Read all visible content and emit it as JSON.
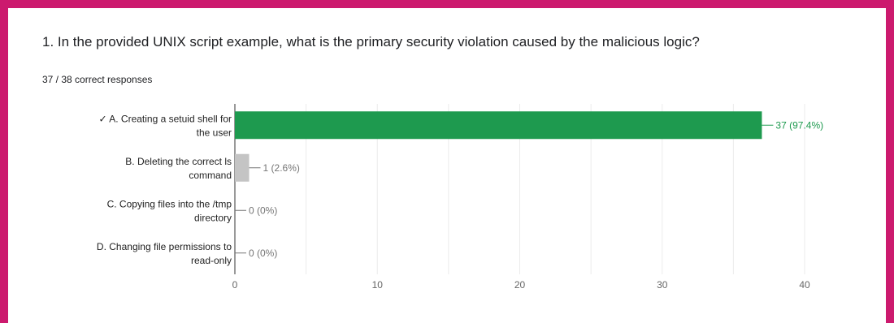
{
  "question": {
    "title": "1. In the provided UNIX script example, what is the primary security violation caused by the malicious logic?",
    "summary": "37 / 38 correct responses"
  },
  "colors": {
    "frame": "#cc1a6e",
    "correct_bar": "#1e9a4f",
    "incorrect_bar": "#c4c4c4",
    "correct_label": "#1e9a4f",
    "incorrect_label": "#757575"
  },
  "chart_data": {
    "type": "bar",
    "orientation": "horizontal",
    "categories": [
      {
        "lines": [
          "✓ A. Creating a setuid shell for",
          "the user"
        ],
        "correct": true
      },
      {
        "lines": [
          "B. Deleting the correct ls",
          "command"
        ],
        "correct": false
      },
      {
        "lines": [
          "C. Copying files into the /tmp",
          "directory"
        ],
        "correct": false
      },
      {
        "lines": [
          "D. Changing file permissions to",
          "read-only"
        ],
        "correct": false
      }
    ],
    "values": [
      37,
      1,
      0,
      0
    ],
    "value_labels": [
      "37 (97.4%)",
      "1 (2.6%)",
      "0 (0%)",
      "0 (0%)"
    ],
    "xlim": [
      0,
      40
    ],
    "xticks": [
      0,
      10,
      20,
      30,
      40
    ],
    "grid": true
  }
}
